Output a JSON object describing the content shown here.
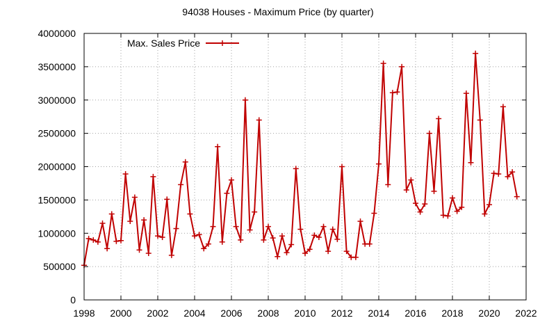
{
  "chart_data": {
    "type": "line",
    "title": "94038 Houses - Maximum Price (by quarter)",
    "xlabel": "",
    "ylabel": "",
    "xlim": [
      1998,
      2022
    ],
    "ylim": [
      0,
      4000000
    ],
    "xticks": [
      "1998",
      "2000",
      "2002",
      "2004",
      "2006",
      "2008",
      "2010",
      "2012",
      "2014",
      "2016",
      "2018",
      "2020",
      "2022"
    ],
    "yticks": [
      "0",
      "500000",
      "1000000",
      "1500000",
      "2000000",
      "2500000",
      "3000000",
      "3500000",
      "4000000"
    ],
    "grid": true,
    "legend_position": "top-left",
    "series": [
      {
        "name": "Max. Sales Price",
        "color": "#c00000",
        "marker": "plus",
        "x": [
          1998.0,
          1998.25,
          1998.5,
          1998.75,
          1999.0,
          1999.25,
          1999.5,
          1999.75,
          2000.0,
          2000.25,
          2000.5,
          2000.75,
          2001.0,
          2001.25,
          2001.5,
          2001.75,
          2002.0,
          2002.25,
          2002.5,
          2002.75,
          2003.0,
          2003.25,
          2003.5,
          2003.75,
          2004.0,
          2004.25,
          2004.5,
          2004.75,
          2005.0,
          2005.25,
          2005.5,
          2005.75,
          2006.0,
          2006.25,
          2006.5,
          2006.75,
          2007.0,
          2007.25,
          2007.5,
          2007.75,
          2008.0,
          2008.25,
          2008.5,
          2008.75,
          2009.0,
          2009.25,
          2009.5,
          2009.75,
          2010.0,
          2010.25,
          2010.5,
          2010.75,
          2011.0,
          2011.25,
          2011.5,
          2011.75,
          2012.0,
          2012.25,
          2012.5,
          2012.75,
          2013.0,
          2013.25,
          2013.5,
          2013.75,
          2014.0,
          2014.25,
          2014.5,
          2014.75,
          2015.0,
          2015.25,
          2015.5,
          2015.75,
          2016.0,
          2016.25,
          2016.5,
          2016.75,
          2017.0,
          2017.25,
          2017.5,
          2017.75,
          2018.0,
          2018.25,
          2018.5,
          2018.75,
          2019.0,
          2019.25,
          2019.5,
          2019.75,
          2020.0,
          2020.25,
          2020.5,
          2020.75,
          2021.0,
          2021.25,
          2021.5
        ],
        "values": [
          520000,
          920000,
          900000,
          870000,
          1150000,
          770000,
          1290000,
          880000,
          890000,
          1890000,
          1180000,
          1540000,
          750000,
          1200000,
          700000,
          1850000,
          960000,
          940000,
          1510000,
          670000,
          1070000,
          1730000,
          2070000,
          1290000,
          960000,
          980000,
          770000,
          840000,
          1100000,
          2300000,
          870000,
          1600000,
          1800000,
          1100000,
          900000,
          3000000,
          1050000,
          1320000,
          2700000,
          900000,
          1100000,
          930000,
          650000,
          960000,
          710000,
          830000,
          1970000,
          1060000,
          700000,
          760000,
          970000,
          940000,
          1100000,
          730000,
          1060000,
          910000,
          2000000,
          730000,
          640000,
          640000,
          1180000,
          840000,
          840000,
          1300000,
          2040000,
          3550000,
          1730000,
          3110000,
          3120000,
          3500000,
          1650000,
          1800000,
          1450000,
          1320000,
          1440000,
          2500000,
          1630000,
          2720000,
          1270000,
          1260000,
          1530000,
          1330000,
          1390000,
          3100000,
          2060000,
          3700000,
          2700000,
          1290000,
          1430000,
          1900000,
          1890000,
          2900000,
          1850000,
          1920000,
          1550000
        ]
      }
    ]
  }
}
